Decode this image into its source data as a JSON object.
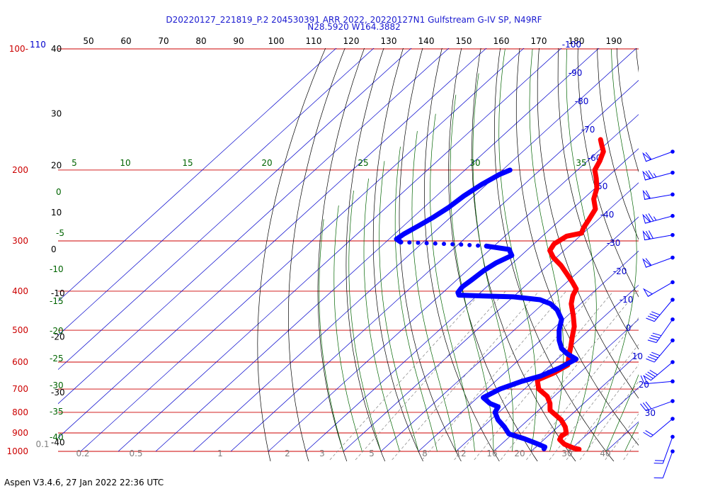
{
  "header": {
    "title_line1": "D20220127_221819_P.2 204530391 ARR 2022, 20220127N1 Gulfstream G-IV SP, N49RF",
    "title_line2": "N28.5920 W164.3882"
  },
  "footer": "Aspen V3.4.6, 27 Jan 2022  22:36 UTC",
  "chart_data": {
    "type": "line",
    "subtype": "skew-t log-p sounding",
    "colors": {
      "temperature": "#ff0000",
      "dewpoint": "#0000ff",
      "isobar": "#cc0000",
      "isotherm": "#0000cc",
      "dry_adiabat": "#000000",
      "moist_adiabat": "#006400",
      "mixing_ratio": "#808080",
      "top_axis_label": "#000000"
    },
    "pressure_labels": [
      {
        "p": 100,
        "text": "100-"
      },
      {
        "p": 200,
        "text": "200"
      },
      {
        "p": 300,
        "text": "300"
      },
      {
        "p": 400,
        "text": "400"
      },
      {
        "p": 500,
        "text": "500"
      },
      {
        "p": 600,
        "text": "600"
      },
      {
        "p": 700,
        "text": "700"
      },
      {
        "p": 800,
        "text": "800"
      },
      {
        "p": 900,
        "text": "900"
      },
      {
        "p": 1000,
        "text": "1000"
      }
    ],
    "top_left_label": "110",
    "top_scale_labels": [
      "50",
      "60",
      "70",
      "80",
      "90",
      "100",
      "110",
      "120",
      "130",
      "140",
      "150",
      "160",
      "170",
      "180",
      "190"
    ],
    "altitude_labels": [
      {
        "p": 100,
        "text": "40"
      },
      {
        "p": 145,
        "text": "30"
      },
      {
        "p": 195,
        "text": "20"
      },
      {
        "p": 255,
        "text": "10"
      },
      {
        "p": 315,
        "text": "0"
      },
      {
        "p": 405,
        "text": "-10"
      },
      {
        "p": 520,
        "text": "-20"
      },
      {
        "p": 715,
        "text": "-30"
      },
      {
        "p": 950,
        "text": "-40"
      }
    ],
    "isotherm_labels": [
      {
        "t": -100,
        "text": "-100"
      },
      {
        "t": -90,
        "text": "-90"
      },
      {
        "t": -80,
        "text": "-80"
      },
      {
        "t": -70,
        "text": "-70"
      },
      {
        "t": -60,
        "text": "-60"
      },
      {
        "t": -50,
        "text": "-50"
      },
      {
        "t": -40,
        "text": "-40"
      },
      {
        "t": -30,
        "text": "-30"
      },
      {
        "t": -20,
        "text": "-20"
      },
      {
        "t": -10,
        "text": "-10"
      },
      {
        "t": 0,
        "text": "0"
      },
      {
        "t": 10,
        "text": "10"
      },
      {
        "t": 20,
        "text": "20"
      },
      {
        "t": 30,
        "text": "30"
      }
    ],
    "moist_labels_top": [
      "5",
      "10",
      "15",
      "20",
      "25",
      "30",
      "35"
    ],
    "moist_labels_left": [
      "0",
      "-5",
      "-10",
      "-15",
      "-20",
      "-25",
      "-30",
      "-35",
      "-40"
    ],
    "mixing_ratio_labels": [
      "0.1",
      "0.2",
      "0.5",
      "1",
      "2",
      "3",
      "5",
      "8",
      "12",
      "16",
      "20",
      "30",
      "40"
    ],
    "temperature": [
      {
        "p": 988,
        "t": 22.2
      },
      {
        "p": 982,
        "t": 20.5
      },
      {
        "p": 960,
        "t": 16.8
      },
      {
        "p": 935,
        "t": 14.2
      },
      {
        "p": 915,
        "t": 13.6
      },
      {
        "p": 900,
        "t": 14.0
      },
      {
        "p": 870,
        "t": 12.0
      },
      {
        "p": 835,
        "t": 8.8
      },
      {
        "p": 790,
        "t": 3.0
      },
      {
        "p": 760,
        "t": 1.0
      },
      {
        "p": 730,
        "t": -1.8
      },
      {
        "p": 700,
        "t": -6.2
      },
      {
        "p": 665,
        "t": -9.2
      },
      {
        "p": 640,
        "t": -7.0
      },
      {
        "p": 610,
        "t": -5.5
      },
      {
        "p": 580,
        "t": -7.8
      },
      {
        "p": 550,
        "t": -10.0
      },
      {
        "p": 520,
        "t": -12.5
      },
      {
        "p": 490,
        "t": -15.0
      },
      {
        "p": 460,
        "t": -18.5
      },
      {
        "p": 430,
        "t": -22.5
      },
      {
        "p": 410,
        "t": -24.5
      },
      {
        "p": 395,
        "t": -25.5
      },
      {
        "p": 380,
        "t": -28.5
      },
      {
        "p": 362,
        "t": -32.5
      },
      {
        "p": 345,
        "t": -36.5
      },
      {
        "p": 330,
        "t": -40.8
      },
      {
        "p": 317,
        "t": -43.8
      },
      {
        "p": 305,
        "t": -44.6
      },
      {
        "p": 292,
        "t": -43.5
      },
      {
        "p": 287,
        "t": -40.5
      },
      {
        "p": 278,
        "t": -41.5
      },
      {
        "p": 265,
        "t": -42.5
      },
      {
        "p": 250,
        "t": -43.8
      },
      {
        "p": 236,
        "t": -47.2
      },
      {
        "p": 222,
        "t": -49.5
      },
      {
        "p": 210,
        "t": -52.5
      },
      {
        "p": 200,
        "t": -55.4
      },
      {
        "p": 190,
        "t": -56.7
      },
      {
        "p": 180,
        "t": -58.5
      },
      {
        "p": 173,
        "t": -61.0
      },
      {
        "p": 168,
        "t": -62.8
      }
    ],
    "dewpoint": [
      {
        "p": 985,
        "t": 12.7
      },
      {
        "p": 975,
        "t": 12.4
      },
      {
        "p": 955,
        "t": 9.0
      },
      {
        "p": 930,
        "t": 4.5
      },
      {
        "p": 905,
        "t": -1.0
      },
      {
        "p": 870,
        "t": -4.2
      },
      {
        "p": 835,
        "t": -8.0
      },
      {
        "p": 800,
        "t": -11.0
      },
      {
        "p": 775,
        "t": -11.8
      },
      {
        "p": 760,
        "t": -15.0
      },
      {
        "p": 735,
        "t": -18.5
      },
      {
        "p": 700,
        "t": -16.5
      },
      {
        "p": 670,
        "t": -13.0
      },
      {
        "p": 650,
        "t": -9.5
      },
      {
        "p": 620,
        "t": -6.8
      },
      {
        "p": 590,
        "t": -5.0
      },
      {
        "p": 572,
        "t": -9.0
      },
      {
        "p": 555,
        "t": -12.0
      },
      {
        "p": 530,
        "t": -15.0
      },
      {
        "p": 500,
        "t": -18.0
      },
      {
        "p": 470,
        "t": -20.5
      },
      {
        "p": 445,
        "t": -24.5
      },
      {
        "p": 430,
        "t": -28.0
      },
      {
        "p": 420,
        "t": -32.0
      },
      {
        "p": 413,
        "t": -40.0
      },
      {
        "p": 411,
        "t": -48.0
      },
      {
        "p": 409,
        "t": -55.0
      },
      {
        "p": 403,
        "t": -56.0
      },
      {
        "p": 390,
        "t": -56.5
      },
      {
        "p": 375,
        "t": -56.0
      },
      {
        "p": 355,
        "t": -55.5
      },
      {
        "p": 340,
        "t": -54.5
      },
      {
        "p": 326,
        "t": -52.5
      },
      {
        "p": 315,
        "t": -55.0
      },
      {
        "p": 309,
        "t": -62.0
      },
      {
        "p": 306,
        "t": -70.0
      },
      {
        "p": 304,
        "t": -78.0
      },
      {
        "p": 302,
        "t": -86.0
      },
      {
        "p": 297,
        "t": -88.0
      },
      {
        "p": 288,
        "t": -87.5
      },
      {
        "p": 275,
        "t": -86.0
      },
      {
        "p": 262,
        "t": -84.6
      },
      {
        "p": 248,
        "t": -83.4
      },
      {
        "p": 232,
        "t": -82.7
      },
      {
        "p": 217,
        "t": -81.3
      },
      {
        "p": 205,
        "t": -79.5
      },
      {
        "p": 200,
        "t": -78.0
      }
    ],
    "dewpoint_dotted_range": [
      297,
      309
    ],
    "wind_barbs": [
      {
        "p": 180,
        "direction": 250,
        "speed": 60
      },
      {
        "p": 203,
        "direction": 255,
        "speed": 75
      },
      {
        "p": 230,
        "direction": 260,
        "speed": 60
      },
      {
        "p": 260,
        "direction": 255,
        "speed": 75
      },
      {
        "p": 290,
        "direction": 260,
        "speed": 70
      },
      {
        "p": 330,
        "direction": 250,
        "speed": 60
      },
      {
        "p": 380,
        "direction": 240,
        "speed": 50
      },
      {
        "p": 420,
        "direction": 220,
        "speed": 40
      },
      {
        "p": 470,
        "direction": 215,
        "speed": 40
      },
      {
        "p": 530,
        "direction": 220,
        "speed": 40
      },
      {
        "p": 600,
        "direction": 230,
        "speed": 40
      },
      {
        "p": 670,
        "direction": 265,
        "speed": 20
      },
      {
        "p": 750,
        "direction": 250,
        "speed": 30
      },
      {
        "p": 830,
        "direction": 230,
        "speed": 20
      },
      {
        "p": 920,
        "direction": 200,
        "speed": 20
      },
      {
        "p": 1000,
        "direction": 200,
        "speed": 10
      }
    ]
  }
}
